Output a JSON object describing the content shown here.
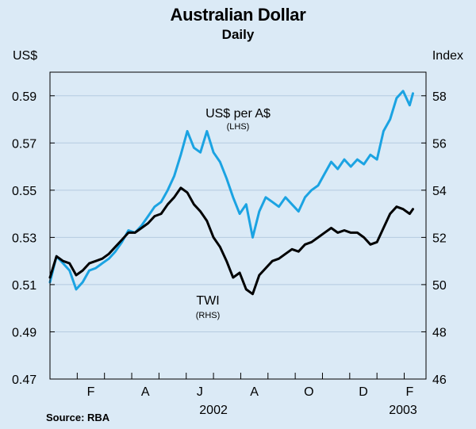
{
  "chart_data": {
    "type": "line",
    "title": "Australian Dollar",
    "subtitle": "Daily",
    "left_axis": {
      "label": "US$",
      "range": [
        0.47,
        0.6
      ],
      "ticks": [
        "0.59",
        "0.57",
        "0.55",
        "0.53",
        "0.51",
        "0.49",
        "0.47"
      ]
    },
    "right_axis": {
      "label": "Index",
      "range": [
        46,
        59
      ],
      "ticks": [
        "58",
        "56",
        "54",
        "52",
        "50",
        "48",
        "46"
      ]
    },
    "x_axis": {
      "tick_labels": [
        "F",
        "A",
        "J",
        "A",
        "O",
        "D",
        "F"
      ],
      "year_labels": [
        "2002",
        "2003"
      ]
    },
    "grid": true,
    "series": [
      {
        "name": "US$ per A$",
        "axis_note": "(LHS)",
        "color": "#1ba3e2",
        "axis": "left",
        "points": [
          [
            2002.0,
            0.511
          ],
          [
            2002.02,
            0.522
          ],
          [
            2002.04,
            0.519
          ],
          [
            2002.06,
            0.516
          ],
          [
            2002.08,
            0.508
          ],
          [
            2002.1,
            0.511
          ],
          [
            2002.12,
            0.516
          ],
          [
            2002.14,
            0.517
          ],
          [
            2002.16,
            0.519
          ],
          [
            2002.18,
            0.521
          ],
          [
            2002.2,
            0.524
          ],
          [
            2002.22,
            0.528
          ],
          [
            2002.24,
            0.533
          ],
          [
            2002.26,
            0.532
          ],
          [
            2002.28,
            0.535
          ],
          [
            2002.3,
            0.539
          ],
          [
            2002.32,
            0.543
          ],
          [
            2002.34,
            0.545
          ],
          [
            2002.36,
            0.55
          ],
          [
            2002.38,
            0.556
          ],
          [
            2002.4,
            0.565
          ],
          [
            2002.42,
            0.575
          ],
          [
            2002.44,
            0.568
          ],
          [
            2002.46,
            0.566
          ],
          [
            2002.48,
            0.575
          ],
          [
            2002.5,
            0.566
          ],
          [
            2002.52,
            0.562
          ],
          [
            2002.54,
            0.555
          ],
          [
            2002.56,
            0.547
          ],
          [
            2002.58,
            0.54
          ],
          [
            2002.6,
            0.544
          ],
          [
            2002.62,
            0.53
          ],
          [
            2002.64,
            0.541
          ],
          [
            2002.66,
            0.547
          ],
          [
            2002.68,
            0.545
          ],
          [
            2002.7,
            0.543
          ],
          [
            2002.72,
            0.547
          ],
          [
            2002.74,
            0.544
          ],
          [
            2002.76,
            0.541
          ],
          [
            2002.78,
            0.547
          ],
          [
            2002.8,
            0.55
          ],
          [
            2002.82,
            0.552
          ],
          [
            2002.84,
            0.557
          ],
          [
            2002.86,
            0.562
          ],
          [
            2002.88,
            0.559
          ],
          [
            2002.9,
            0.563
          ],
          [
            2002.92,
            0.56
          ],
          [
            2002.94,
            0.563
          ],
          [
            2002.96,
            0.561
          ],
          [
            2002.98,
            0.565
          ],
          [
            2003.0,
            0.563
          ],
          [
            2003.02,
            0.575
          ],
          [
            2003.04,
            0.58
          ],
          [
            2003.06,
            0.589
          ],
          [
            2003.08,
            0.592
          ],
          [
            2003.1,
            0.586
          ],
          [
            2003.11,
            0.591
          ]
        ]
      },
      {
        "name": "TWI",
        "axis_note": "(RHS)",
        "color": "#000000",
        "axis": "right",
        "points": [
          [
            2002.0,
            50.3
          ],
          [
            2002.02,
            51.2
          ],
          [
            2002.04,
            51.0
          ],
          [
            2002.06,
            50.9
          ],
          [
            2002.08,
            50.4
          ],
          [
            2002.1,
            50.6
          ],
          [
            2002.12,
            50.9
          ],
          [
            2002.14,
            51.0
          ],
          [
            2002.16,
            51.1
          ],
          [
            2002.18,
            51.3
          ],
          [
            2002.2,
            51.6
          ],
          [
            2002.22,
            51.9
          ],
          [
            2002.24,
            52.2
          ],
          [
            2002.26,
            52.2
          ],
          [
            2002.28,
            52.4
          ],
          [
            2002.3,
            52.6
          ],
          [
            2002.32,
            52.9
          ],
          [
            2002.34,
            53.0
          ],
          [
            2002.36,
            53.4
          ],
          [
            2002.38,
            53.7
          ],
          [
            2002.4,
            54.1
          ],
          [
            2002.42,
            53.9
          ],
          [
            2002.44,
            53.4
          ],
          [
            2002.46,
            53.1
          ],
          [
            2002.48,
            52.7
          ],
          [
            2002.5,
            52.0
          ],
          [
            2002.52,
            51.6
          ],
          [
            2002.54,
            51.0
          ],
          [
            2002.56,
            50.3
          ],
          [
            2002.58,
            50.5
          ],
          [
            2002.6,
            49.8
          ],
          [
            2002.62,
            49.6
          ],
          [
            2002.64,
            50.4
          ],
          [
            2002.66,
            50.7
          ],
          [
            2002.68,
            51.0
          ],
          [
            2002.7,
            51.1
          ],
          [
            2002.72,
            51.3
          ],
          [
            2002.74,
            51.5
          ],
          [
            2002.76,
            51.4
          ],
          [
            2002.78,
            51.7
          ],
          [
            2002.8,
            51.8
          ],
          [
            2002.82,
            52.0
          ],
          [
            2002.84,
            52.2
          ],
          [
            2002.86,
            52.4
          ],
          [
            2002.88,
            52.2
          ],
          [
            2002.9,
            52.3
          ],
          [
            2002.92,
            52.2
          ],
          [
            2002.94,
            52.2
          ],
          [
            2002.96,
            52.0
          ],
          [
            2002.98,
            51.7
          ],
          [
            2003.0,
            51.8
          ],
          [
            2003.02,
            52.4
          ],
          [
            2003.04,
            53.0
          ],
          [
            2003.06,
            53.3
          ],
          [
            2003.08,
            53.2
          ],
          [
            2003.1,
            53.0
          ],
          [
            2003.11,
            53.2
          ]
        ]
      }
    ],
    "annotations": [
      {
        "text": "US$ per A$",
        "sub": "(LHS)"
      },
      {
        "text": "TWI",
        "sub": "(RHS)"
      }
    ],
    "source": "Source: RBA"
  }
}
